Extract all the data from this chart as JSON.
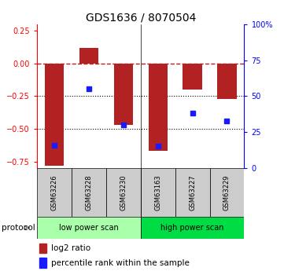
{
  "title": "GDS1636 / 8070504",
  "samples": [
    "GSM63226",
    "GSM63228",
    "GSM63230",
    "GSM63163",
    "GSM63227",
    "GSM63229"
  ],
  "log2_ratio": [
    -0.78,
    0.12,
    -0.47,
    -0.67,
    -0.2,
    -0.27
  ],
  "percentile_rank": [
    16,
    55,
    30,
    15,
    38,
    33
  ],
  "ylim_left": [
    -0.8,
    0.3
  ],
  "ylim_right": [
    0,
    100
  ],
  "bar_color": "#b22222",
  "dot_color": "#1a1aff",
  "protocol_groups": [
    {
      "label": "low power scan",
      "start": 0,
      "end": 3,
      "color": "#aaffaa"
    },
    {
      "label": "high power scan",
      "start": 3,
      "end": 6,
      "color": "#00dd44"
    }
  ],
  "hlines": [
    -0.25,
    -0.5
  ],
  "zero_line": 0.0,
  "bar_width": 0.55,
  "left_yticks": [
    -0.75,
    -0.5,
    -0.25,
    0.0,
    0.25
  ],
  "right_yticks": [
    0,
    25,
    50,
    75,
    100
  ],
  "right_yticklabels": [
    "0",
    "25",
    "50",
    "75",
    "100%"
  ],
  "sample_box_color": "#cccccc",
  "bg_color": "#ffffff"
}
